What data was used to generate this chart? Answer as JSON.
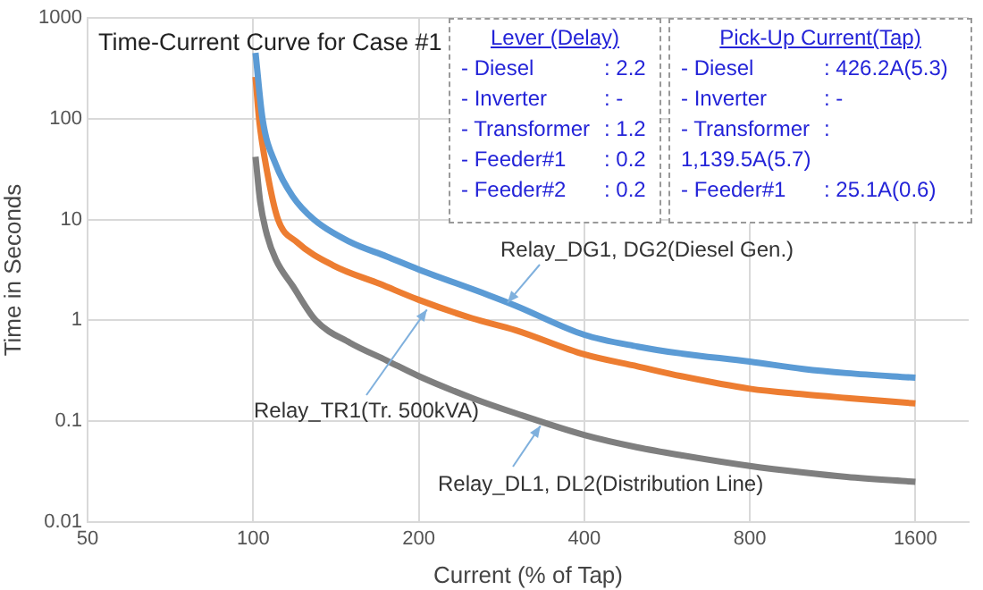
{
  "chart_data": {
    "type": "line",
    "title": "Time-Current Curve for Case #1",
    "xlabel": "Current (% of Tap)",
    "ylabel": "Time in Seconds",
    "log": "xy",
    "grid": true,
    "legend": false,
    "marker": "none",
    "line_style": "solid",
    "xlim": [
      50,
      2000
    ],
    "xticks": [
      50,
      100,
      200,
      400,
      800,
      1600
    ],
    "ylim": [
      0.01,
      1000
    ],
    "yticks": [
      0.01,
      0.1,
      1,
      10,
      100,
      1000
    ],
    "series": [
      {
        "color": "#5b9bd5",
        "x": [
          101,
          104,
          110,
          118,
          129,
          150,
          175,
          200,
          268,
          300,
          400,
          500,
          600,
          800,
          1000,
          1200,
          1600
        ],
        "values": [
          450,
          100,
          35,
          17,
          10,
          6,
          4.3,
          3.2,
          1.78,
          1.4,
          0.72,
          0.55,
          0.47,
          0.39,
          0.33,
          0.3,
          0.27
        ]
      },
      {
        "color": "#ed7d31",
        "x": [
          101,
          102.5,
          106,
          111,
          120,
          140,
          170,
          200,
          250,
          300,
          400,
          500,
          600,
          800,
          1000,
          1200,
          1600
        ],
        "values": [
          260,
          100,
          30,
          10,
          6,
          3.5,
          2.3,
          1.6,
          1.05,
          0.8,
          0.46,
          0.35,
          0.28,
          0.21,
          0.185,
          0.17,
          0.15
        ]
      },
      {
        "color": "#7f7f7f",
        "x": [
          101,
          103,
          106,
          110,
          118,
          130,
          150,
          175,
          200,
          250,
          300,
          400,
          500,
          600,
          800,
          1000,
          1200,
          1600
        ],
        "values": [
          42,
          15,
          7,
          4,
          2.2,
          1,
          0.6,
          0.4,
          0.28,
          0.17,
          0.12,
          0.073,
          0.055,
          0.046,
          0.036,
          0.031,
          0.028,
          0.025
        ]
      }
    ],
    "annotations": [
      "Lever (Delay)\n- Diesel\t: 2.2\n- Inverter\t: -\n- Transformer\t: 1.2\n- Feeder#1\t: 0.2\n- Feeder#2\t: 0.2",
      "Pick-Up Current(Tap)\n- Diesel\t: 426.2A(5.3)\n- Inverter\t: -\n- Transformer\t:\n1,139.5A(5.7)\n- Feeder#1\t: 25.1A(0.6)",
      {
        "text": "Relay_DG1, DG2(Diesel Gen.)",
        "x": 290,
        "y": 1.5
      },
      {
        "text": "Relay_TR1(Tr. 500kVA)",
        "x": 207,
        "y": 1.28
      },
      {
        "text": "Relay_DL1, DL2(Distribution Line)",
        "x": 333,
        "y": 0.09
      }
    ]
  }
}
